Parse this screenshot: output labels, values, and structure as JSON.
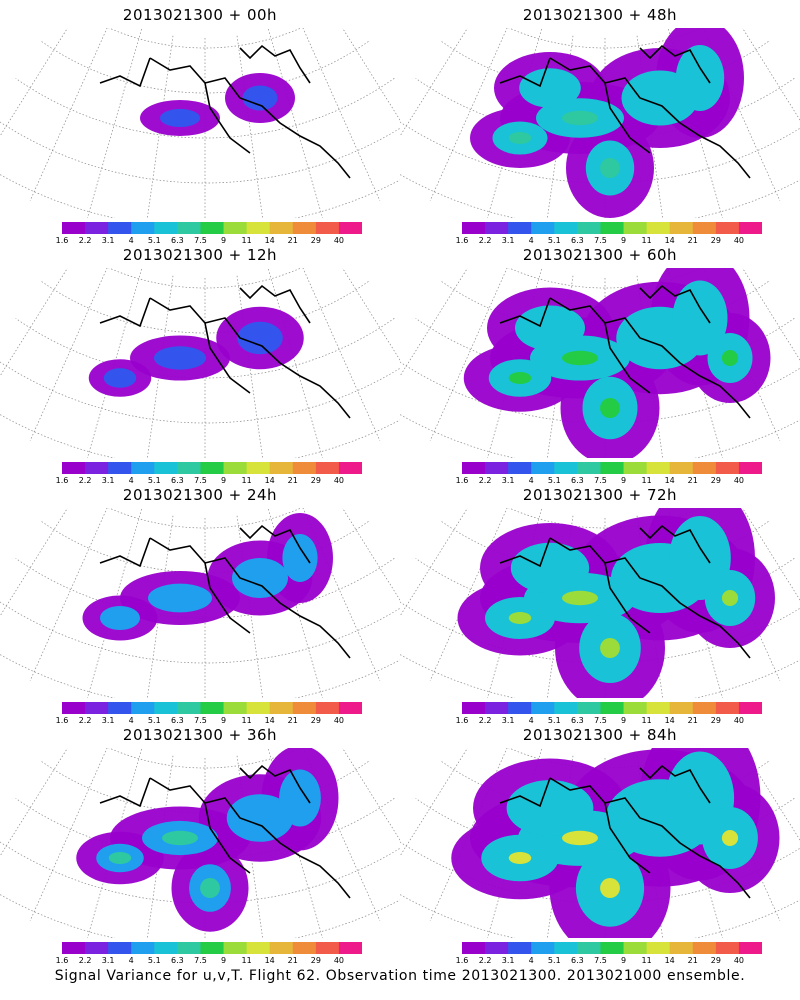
{
  "panels": [
    {
      "title": "2013021300 + 00h",
      "intensity": 0
    },
    {
      "title": "2013021300 + 48h",
      "intensity": 4
    },
    {
      "title": "2013021300 + 12h",
      "intensity": 1
    },
    {
      "title": "2013021300 + 60h",
      "intensity": 5
    },
    {
      "title": "2013021300 + 24h",
      "intensity": 2
    },
    {
      "title": "2013021300 + 72h",
      "intensity": 6
    },
    {
      "title": "2013021300 + 36h",
      "intensity": 3
    },
    {
      "title": "2013021300 + 84h",
      "intensity": 7
    }
  ],
  "colorbar": {
    "labels": [
      "1.6",
      "2.2",
      "3.1",
      "4",
      "5.1",
      "6.3",
      "7.5",
      "9",
      "11",
      "14",
      "21",
      "29",
      "40"
    ],
    "colors": [
      "#9900cc",
      "#7a22e0",
      "#3355ee",
      "#1f9fee",
      "#19c2d6",
      "#2ec9a0",
      "#23cc44",
      "#9bdc3a",
      "#d7e23a",
      "#e6b63a",
      "#ef8c3a",
      "#f25a4a",
      "#ee1a8a"
    ]
  },
  "footer": "Signal Variance for u,v,T. Flight 62. Observation time 2013021300. 2013021000 ensemble."
}
